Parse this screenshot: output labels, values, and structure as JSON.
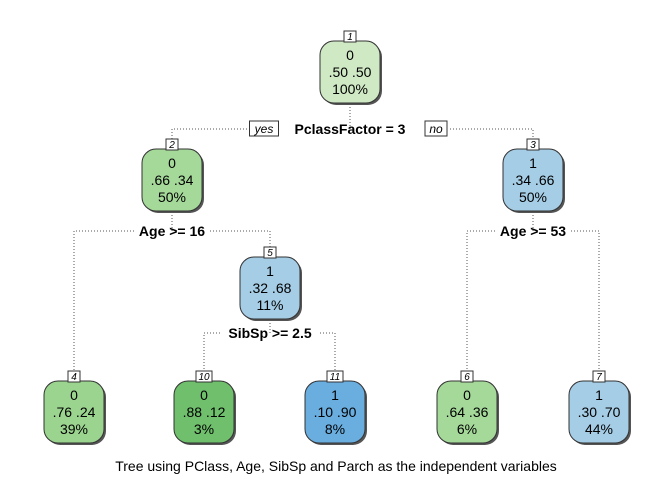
{
  "caption": "Tree using PClass, Age, SibSp and Parch as the independent variables",
  "branch_labels": {
    "yes": "yes",
    "no": "no"
  },
  "nodes": [
    {
      "key": "n1",
      "id": "1",
      "class": "0",
      "probs": ".50  .50",
      "pct": "100%",
      "color": "#cfe9c5"
    },
    {
      "key": "n2",
      "id": "2",
      "class": "0",
      "probs": ".66  .34",
      "pct": "50%",
      "color": "#a5d99a"
    },
    {
      "key": "n3",
      "id": "3",
      "class": "1",
      "probs": ".34  .66",
      "pct": "50%",
      "color": "#a6cde6"
    },
    {
      "key": "n5",
      "id": "5",
      "class": "1",
      "probs": ".32  .68",
      "pct": "11%",
      "color": "#a6cde6"
    },
    {
      "key": "n4",
      "id": "4",
      "class": "0",
      "probs": ".76  .24",
      "pct": "39%",
      "color": "#9bd48f"
    },
    {
      "key": "n10",
      "id": "10",
      "class": "0",
      "probs": ".88  .12",
      "pct": "3%",
      "color": "#6fbf6c"
    },
    {
      "key": "n11",
      "id": "11",
      "class": "1",
      "probs": ".10  .90",
      "pct": "8%",
      "color": "#6aaee0"
    },
    {
      "key": "n6",
      "id": "6",
      "class": "0",
      "probs": ".64  .36",
      "pct": "6%",
      "color": "#a5d99a"
    },
    {
      "key": "n7",
      "id": "7",
      "class": "1",
      "probs": ".30  .70",
      "pct": "44%",
      "color": "#a6cde6"
    }
  ],
  "splits": [
    {
      "key": "s1",
      "label": "PclassFactor = 3"
    },
    {
      "key": "s2",
      "label": "Age >= 16"
    },
    {
      "key": "s3",
      "label": "Age >= 53"
    },
    {
      "key": "s5",
      "label": "SibSp >= 2.5"
    }
  ]
}
